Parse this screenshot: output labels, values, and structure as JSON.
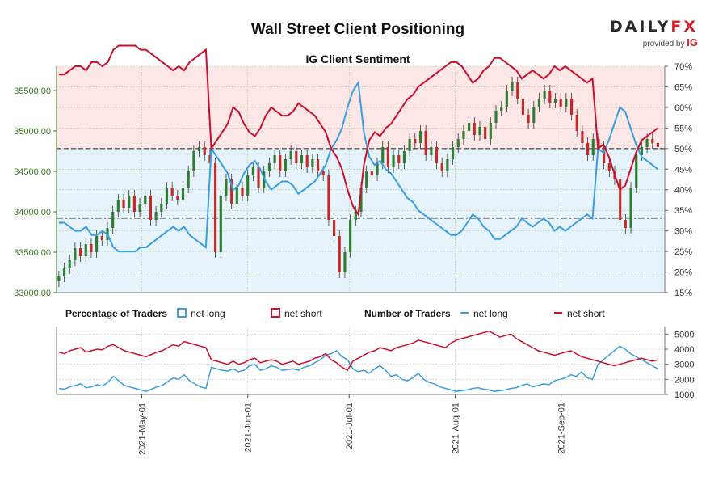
{
  "header": {
    "title": "Wall Street Client Positioning",
    "brand_daily": "DAILY",
    "brand_fx": "FX",
    "brand_provided": "provided by",
    "brand_ig": "IG"
  },
  "colors": {
    "long": "#3a9ee0",
    "short": "#c8102e",
    "up_candle": "#2e7d32",
    "down_candle": "#c62828",
    "bg_top": "#fde6e6",
    "bg_bottom": "#e7f3fb",
    "axis_green": "#3a7a20"
  },
  "legend": {
    "pct_title": "Percentage of Traders",
    "num_title": "Number of Traders",
    "long_label": "net long",
    "short_label": "net short"
  },
  "chart_data": [
    {
      "type": "candlestick",
      "title": "IG Client Sentiment",
      "y_left_ticks": [
        "33000.00",
        "33500.00",
        "34000.00",
        "34500.00",
        "35000.00",
        "35500.00"
      ],
      "y_left_range": [
        33000,
        35800
      ],
      "y_right_ticks": [
        "15%",
        "20%",
        "25%",
        "30%",
        "35%",
        "40%",
        "45%",
        "50%",
        "55%",
        "60%",
        "65%",
        "70%"
      ],
      "y_right_range": [
        15,
        70
      ],
      "reference_lines": [
        {
          "axis": "right",
          "value": 50
        },
        {
          "axis": "right",
          "value": 33
        }
      ],
      "price_close": [
        33200,
        33300,
        33400,
        33550,
        33450,
        33600,
        33500,
        33700,
        33650,
        33800,
        34000,
        34150,
        34050,
        34200,
        34000,
        34100,
        34200,
        33900,
        34000,
        34100,
        34300,
        34200,
        34150,
        34300,
        34500,
        34750,
        34800,
        34700,
        34600,
        33500,
        34200,
        34400,
        34100,
        34300,
        34200,
        34450,
        34550,
        34300,
        34500,
        34600,
        34700,
        34500,
        34650,
        34750,
        34600,
        34700,
        34550,
        34650,
        34500,
        34450,
        33900,
        33700,
        33250,
        33500,
        33900,
        34000,
        34300,
        34500,
        34450,
        34600,
        34800,
        34550,
        34700,
        34600,
        34750,
        34900,
        34850,
        35000,
        34700,
        34800,
        34600,
        34500,
        34650,
        34800,
        34900,
        35000,
        35100,
        34950,
        35050,
        34900,
        35100,
        35250,
        35300,
        35500,
        35600,
        35400,
        35200,
        35100,
        35300,
        35400,
        35500,
        35350,
        35400,
        35300,
        35400,
        35200,
        35000,
        34850,
        34700,
        34900,
        34800,
        34600,
        34500,
        34400,
        33900,
        33800,
        34300,
        34700,
        34800,
        34900,
        34850,
        34800
      ],
      "pct_long": [
        32,
        32,
        31,
        30,
        30,
        31,
        29,
        29,
        30,
        29,
        26,
        25,
        25,
        25,
        25,
        26,
        26,
        27,
        28,
        29,
        30,
        31,
        30,
        31,
        29,
        28,
        27,
        26,
        50,
        48,
        46,
        44,
        40,
        41,
        44,
        46,
        47,
        45,
        42,
        40,
        41,
        42,
        42,
        41,
        39,
        40,
        41,
        42,
        44,
        46,
        50,
        52,
        55,
        60,
        64,
        66,
        54,
        48,
        46,
        47,
        45,
        44,
        42,
        40,
        38,
        37,
        35,
        34,
        33,
        32,
        31,
        30,
        29,
        29,
        30,
        32,
        34,
        33,
        31,
        30,
        28,
        28,
        29,
        30,
        31,
        33,
        32,
        31,
        32,
        33,
        32,
        30,
        31,
        30,
        31,
        32,
        33,
        34,
        33,
        50,
        49,
        52,
        56,
        60,
        59,
        55,
        51,
        48,
        47,
        46,
        45
      ],
      "pct_short": [
        68,
        68,
        69,
        70,
        70,
        69,
        71,
        71,
        70,
        71,
        74,
        75,
        75,
        75,
        75,
        74,
        74,
        73,
        72,
        71,
        70,
        69,
        70,
        69,
        71,
        72,
        73,
        74,
        50,
        52,
        54,
        56,
        60,
        59,
        56,
        54,
        53,
        55,
        58,
        60,
        59,
        58,
        58,
        59,
        61,
        60,
        59,
        58,
        56,
        54,
        50,
        48,
        45,
        40,
        36,
        34,
        46,
        52,
        54,
        53,
        55,
        56,
        58,
        60,
        62,
        63,
        65,
        66,
        67,
        68,
        69,
        70,
        71,
        71,
        70,
        68,
        66,
        67,
        69,
        70,
        72,
        72,
        71,
        70,
        69,
        67,
        68,
        69,
        68,
        67,
        68,
        70,
        69,
        70,
        69,
        68,
        67,
        66,
        67,
        50,
        51,
        48,
        44,
        40,
        41,
        45,
        49,
        52,
        53,
        54,
        55
      ]
    },
    {
      "type": "line",
      "series": [
        {
          "name": "net long",
          "values": [
            1400,
            1350,
            1500,
            1600,
            1700,
            1450,
            1500,
            1650,
            1550,
            1800,
            2200,
            1900,
            1600,
            1500,
            1400,
            1300,
            1200,
            1350,
            1500,
            1600,
            1850,
            2100,
            2000,
            2300,
            1900,
            1700,
            1500,
            1400,
            2800,
            2700,
            2600,
            2550,
            2700,
            2500,
            2600,
            2900,
            3000,
            2600,
            2700,
            2900,
            2800,
            2600,
            2650,
            2700,
            2600,
            2800,
            2900,
            3100,
            3300,
            3600,
            3700,
            3900,
            3500,
            3300,
            2700,
            2500,
            2600,
            2400,
            2700,
            2900,
            2600,
            2200,
            2300,
            2000,
            1900,
            2100,
            2400,
            2000,
            1800,
            1700,
            1500,
            1400,
            1300,
            1200,
            1250,
            1300,
            1400,
            1450,
            1350,
            1300,
            1200,
            1250,
            1300,
            1400,
            1450,
            1600,
            1700,
            1500,
            1600,
            1700,
            1650,
            1900,
            2000,
            2100,
            2300,
            2200,
            2500,
            2100,
            2000,
            3000,
            3300,
            3600,
            3900,
            4200,
            4000,
            3700,
            3500,
            3300,
            3100,
            2900,
            2700
          ]
        },
        {
          "name": "net short",
          "values": [
            3800,
            3700,
            3900,
            4000,
            4100,
            3800,
            3900,
            4000,
            3950,
            4200,
            4300,
            4100,
            3900,
            3800,
            3700,
            3600,
            3500,
            3650,
            3800,
            3900,
            4100,
            4300,
            4200,
            4500,
            4400,
            4300,
            4200,
            4100,
            3300,
            3200,
            3100,
            3000,
            3200,
            3000,
            3100,
            3300,
            3400,
            3100,
            3200,
            3300,
            3200,
            3000,
            3100,
            3200,
            3000,
            3100,
            3200,
            3400,
            3500,
            3700,
            3300,
            3100,
            2800,
            2600,
            3200,
            3400,
            3600,
            3800,
            3900,
            4100,
            4000,
            3900,
            4100,
            4200,
            4300,
            4400,
            4600,
            4500,
            4400,
            4300,
            4200,
            4100,
            4400,
            4600,
            4700,
            4800,
            4900,
            5000,
            5100,
            5200,
            5000,
            4800,
            4900,
            5000,
            4700,
            4500,
            4300,
            4100,
            3900,
            3800,
            3700,
            3600,
            3700,
            3800,
            3900,
            3700,
            3500,
            3400,
            3300,
            3200,
            3100,
            3000,
            2900,
            3000,
            3100,
            3200,
            3300,
            3400,
            3300,
            3200,
            3300
          ]
        }
      ],
      "y_ticks": [
        "1000",
        "2000",
        "3000",
        "4000",
        "5000"
      ],
      "y_range": [
        1000,
        5500
      ]
    }
  ],
  "x_axis": {
    "ticks": [
      "2021-May-01",
      "2021-Jun-01",
      "2021-Jul-01",
      "2021-Aug-01",
      "2021-Sep-01"
    ],
    "tick_index": [
      18,
      41,
      63,
      86,
      109
    ],
    "num_days": 132
  }
}
